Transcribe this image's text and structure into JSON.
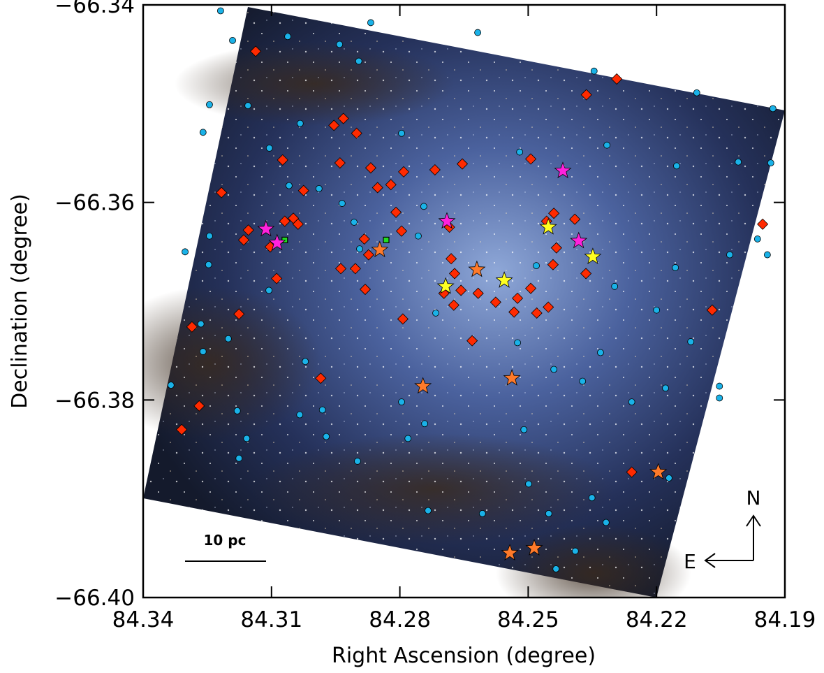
{
  "chart_data": {
    "type": "scatter",
    "xlabel": "Right Ascension (degree)",
    "ylabel": "Declination (degree)",
    "xlim": [
      84.34,
      84.19
    ],
    "xticks": [
      84.34,
      84.31,
      84.28,
      84.25,
      84.22,
      84.19
    ],
    "ylim": [
      -66.4,
      -66.34
    ],
    "yticks": [
      {
        "value": -66.4,
        "label": "−66.40"
      },
      {
        "value": -66.38,
        "label": "−66.38"
      },
      {
        "value": -66.36,
        "label": "−66.36"
      },
      {
        "value": -66.34,
        "label": "−66.34"
      }
    ],
    "annotations": {
      "scale": "10 pc",
      "north": "N",
      "east": "E"
    },
    "series": [
      {
        "marker": "circle",
        "color": "#1ab2e8",
        "x": [
          84.3219,
          84.3191,
          84.3062,
          84.2941,
          84.2868,
          84.2896,
          84.2618,
          84.2346,
          84.2106,
          84.1928,
          84.3245,
          84.326,
          84.3155,
          84.3033,
          84.3105,
          84.3059,
          84.2989,
          84.2935,
          84.2907,
          84.3245,
          84.3302,
          84.3247,
          84.3106,
          84.3265,
          84.326,
          84.3201,
          84.3335,
          84.318,
          84.3158,
          84.3176,
          84.3034,
          84.3021,
          84.2981,
          84.2972,
          84.2899,
          84.2796,
          84.2742,
          84.2781,
          84.2796,
          84.2744,
          84.2757,
          84.2716,
          84.2525,
          84.244,
          84.252,
          84.2316,
          84.2153,
          84.2009,
          84.1933,
          84.2156,
          84.2029,
          84.1941,
          84.22,
          84.212,
          84.2179,
          84.2053,
          84.2258,
          84.2373,
          84.2331,
          84.2298,
          84.251,
          84.2499,
          84.2351,
          84.239,
          84.2435,
          84.2318,
          84.2171,
          84.2607,
          84.2452,
          84.2734,
          84.2894,
          84.2481,
          84.1964,
          84.2053
        ],
        "values": [
          -66.3406,
          -66.3436,
          -66.3432,
          -66.344,
          -66.3418,
          -66.3457,
          -66.3428,
          -66.3467,
          -66.3489,
          -66.3505,
          -66.3501,
          -66.3529,
          -66.3502,
          -66.352,
          -66.3545,
          -66.3583,
          -66.3586,
          -66.3601,
          -66.362,
          -66.3634,
          -66.365,
          -66.3663,
          -66.3689,
          -66.3723,
          -66.3751,
          -66.3738,
          -66.3785,
          -66.3811,
          -66.3839,
          -66.3859,
          -66.3815,
          -66.3761,
          -66.381,
          -66.3837,
          -66.3862,
          -66.3802,
          -66.3824,
          -66.3839,
          -66.353,
          -66.3604,
          -66.3634,
          -66.3712,
          -66.3742,
          -66.3769,
          -66.3549,
          -66.3542,
          -66.3563,
          -66.3559,
          -66.356,
          -66.3666,
          -66.3653,
          -66.3653,
          -66.3709,
          -66.3741,
          -66.3788,
          -66.3786,
          -66.3802,
          -66.3781,
          -66.3752,
          -66.3685,
          -66.383,
          -66.3885,
          -66.3899,
          -66.3953,
          -66.3971,
          -66.3924,
          -66.3879,
          -66.3915,
          -66.3915,
          -66.3912,
          -66.3647,
          -66.3664,
          -66.3637,
          -66.3798
        ]
      },
      {
        "marker": "diamond",
        "color": "#ff2a00",
        "x": [
          84.3137,
          84.331,
          84.3269,
          84.3286,
          84.3176,
          84.3217,
          84.3154,
          84.3165,
          84.3103,
          84.3074,
          84.3069,
          84.3049,
          84.3038,
          84.3025,
          84.3088,
          84.2954,
          84.2932,
          84.294,
          84.2901,
          84.2868,
          84.2852,
          84.2821,
          84.2791,
          84.2809,
          84.2796,
          84.2883,
          84.2873,
          84.2904,
          84.2881,
          84.2793,
          84.2985,
          84.2718,
          84.2654,
          84.2684,
          84.268,
          84.2672,
          84.2697,
          84.2674,
          84.2631,
          84.2657,
          84.2617,
          84.2576,
          84.2525,
          84.2533,
          84.2494,
          84.248,
          84.2453,
          84.2494,
          84.2457,
          84.244,
          84.2434,
          84.2442,
          84.2391,
          84.2365,
          84.2364,
          84.2293,
          84.1952,
          84.207,
          84.2258,
          84.2938
        ],
        "values": [
          -66.3447,
          -66.383,
          -66.3806,
          -66.3726,
          -66.3713,
          -66.359,
          -66.3628,
          -66.3638,
          -66.3645,
          -66.3557,
          -66.3619,
          -66.3616,
          -66.3622,
          -66.3588,
          -66.3677,
          -66.3522,
          -66.3515,
          -66.356,
          -66.353,
          -66.3565,
          -66.3585,
          -66.3582,
          -66.3569,
          -66.361,
          -66.3629,
          -66.3637,
          -66.3653,
          -66.3667,
          -66.3688,
          -66.3718,
          -66.3778,
          -66.3567,
          -66.3561,
          -66.3625,
          -66.3657,
          -66.3672,
          -66.3692,
          -66.3704,
          -66.374,
          -66.3689,
          -66.3692,
          -66.3701,
          -66.3697,
          -66.3711,
          -66.3687,
          -66.3712,
          -66.3706,
          -66.3556,
          -66.3619,
          -66.3611,
          -66.3646,
          -66.3663,
          -66.3617,
          -66.3672,
          -66.3491,
          -66.3475,
          -66.3622,
          -66.3709,
          -66.3873,
          -66.3667
        ]
      },
      {
        "marker": "square",
        "color": "#22dd22",
        "x": [
          84.3069,
          84.2832
        ],
        "values": [
          -66.3638,
          -66.3638
        ]
      },
      {
        "marker": "star",
        "color": "#ff7a2a",
        "x": [
          84.2847,
          84.262,
          84.2746,
          84.2538,
          84.2196,
          84.2486,
          84.2543
        ],
        "values": [
          -66.3648,
          -66.3668,
          -66.3786,
          -66.3778,
          -66.3873,
          -66.395,
          -66.3955
        ]
      },
      {
        "marker": "star",
        "color": "#ffff22",
        "x": [
          84.2693,
          84.2556,
          84.2349,
          84.2453
        ],
        "values": [
          -66.3685,
          -66.3679,
          -66.3655,
          -66.3625
        ]
      },
      {
        "marker": "star",
        "color": "#ff22dd",
        "x": [
          84.3113,
          84.3087,
          84.269,
          84.2419,
          84.2382
        ],
        "values": [
          -66.3627,
          -66.3641,
          -66.3619,
          -66.3568,
          -66.3639
        ]
      }
    ]
  }
}
